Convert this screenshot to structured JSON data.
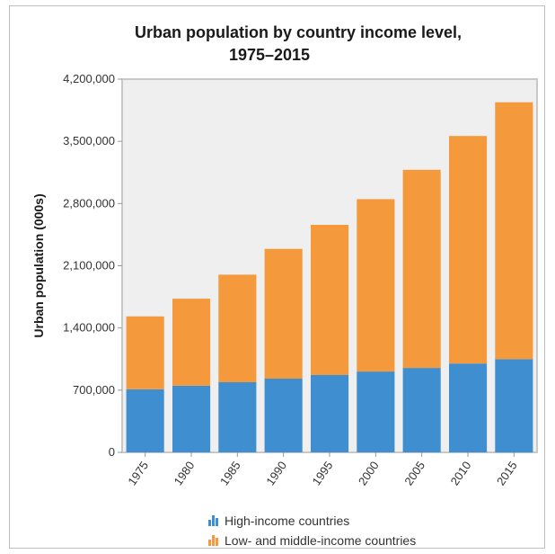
{
  "chart_data": {
    "type": "bar",
    "stacked": true,
    "title": "Urban population by country income level,",
    "subtitle": "1975–2015",
    "xlabel": "",
    "ylabel": "Urban population (000s)",
    "ylim": [
      0,
      4200000
    ],
    "yticks": [
      0,
      700000,
      1400000,
      2100000,
      2800000,
      3500000,
      4200000
    ],
    "ytick_labels": [
      "0",
      "700,000",
      "1,400,000",
      "2,100,000",
      "2,800,000",
      "3,500,000",
      "4,200,000"
    ],
    "categories": [
      "1975",
      "1980",
      "1985",
      "1990",
      "1995",
      "2000",
      "2005",
      "2010",
      "2015"
    ],
    "series": [
      {
        "name": "High-income countries",
        "color": "#3e8ed0",
        "values": [
          710000,
          750000,
          790000,
          830000,
          870000,
          910000,
          950000,
          1000000,
          1050000
        ]
      },
      {
        "name": "Low- and middle-income countries",
        "color": "#f59a3c",
        "values": [
          820000,
          980000,
          1210000,
          1460000,
          1690000,
          1940000,
          2230000,
          2560000,
          2890000
        ]
      }
    ],
    "grid": false,
    "legend_position": "bottom"
  },
  "legend": [
    {
      "label": "High-income countries",
      "color": "#3e8ed0"
    },
    {
      "label": "Low- and middle-income countries",
      "color": "#f59a3c"
    }
  ]
}
